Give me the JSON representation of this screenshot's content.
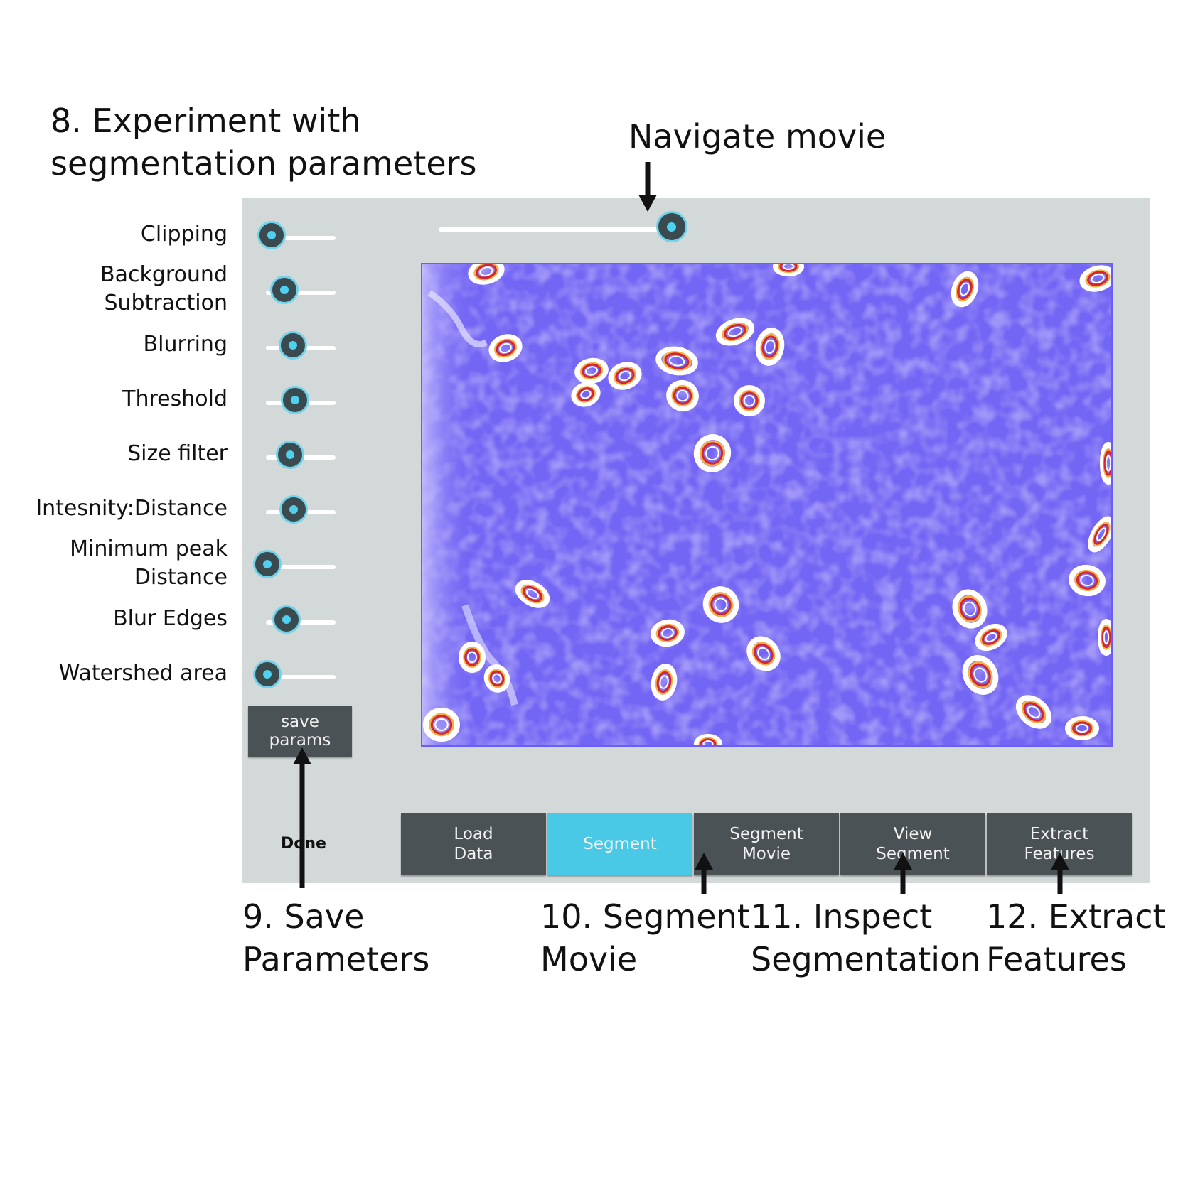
{
  "annotations": {
    "step8": [
      "8. Experiment with",
      "segmentation parameters"
    ],
    "navigate": "Navigate movie",
    "step9": [
      "9. Save",
      "Parameters"
    ],
    "step10": [
      "10. Segment",
      "Movie"
    ],
    "step11": [
      "11. Inspect",
      "Segmentation"
    ],
    "step12": [
      "12. Extract",
      "Features"
    ]
  },
  "parameters": [
    {
      "label": [
        "Clipping"
      ],
      "value": 0.08
    },
    {
      "label": [
        "Background",
        "Subtraction"
      ],
      "value": 0.27
    },
    {
      "label": [
        "Blurring"
      ],
      "value": 0.39
    },
    {
      "label": [
        "Threshold"
      ],
      "value": 0.42
    },
    {
      "label": [
        "Size filter"
      ],
      "value": 0.35
    },
    {
      "label": [
        "Intesnity:Distance"
      ],
      "value": 0.4
    },
    {
      "label": [
        "Minimum peak",
        "Distance"
      ],
      "value": 0.02
    },
    {
      "label": [
        "Blur Edges"
      ],
      "value": 0.3
    },
    {
      "label": [
        "Watershed area"
      ],
      "value": 0.02
    }
  ],
  "movie_position": 0.97,
  "save_button": "save params",
  "done_label": "Done",
  "tabs": [
    {
      "label": "Load\nData",
      "active": false
    },
    {
      "label": "Segment",
      "active": true
    },
    {
      "label": "Segment\nMovie",
      "active": false
    },
    {
      "label": "View\nSegment",
      "active": false
    },
    {
      "label": "Extract\nFeatures",
      "active": false
    }
  ],
  "colors": {
    "panel": "#d3d9d8",
    "button": "#4b5255",
    "accent": "#4ac9e6",
    "image_background": "#7466f4"
  }
}
